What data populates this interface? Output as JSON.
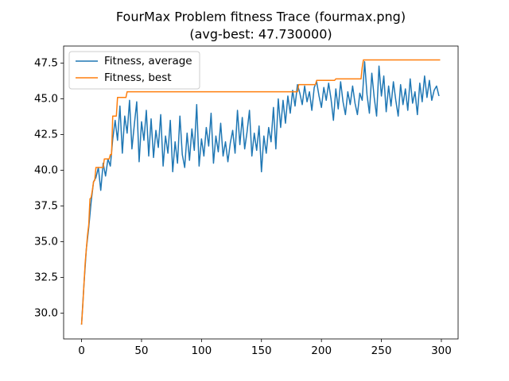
{
  "chart_data": {
    "type": "line",
    "title": "FourMax Problem fitness Trace (fourmax.png)",
    "subtitle": "(avg-best: 47.730000)",
    "legend": "upper left",
    "grid": false,
    "xlim": [
      -14.95,
      313.95
    ],
    "ylim": [
      28.2,
      48.7
    ],
    "xticks": [
      0,
      50,
      100,
      150,
      200,
      250,
      300
    ],
    "yticks": [
      {
        "value": 30,
        "label": "30.0"
      },
      {
        "value": 32.5,
        "label": "32.5"
      },
      {
        "value": 35,
        "label": "35.0"
      },
      {
        "value": 37.5,
        "label": "37.5"
      },
      {
        "value": 40,
        "label": "40.0"
      },
      {
        "value": 42.5,
        "label": "42.5"
      },
      {
        "value": 45,
        "label": "45.0"
      },
      {
        "value": 47.5,
        "label": "47.5"
      }
    ],
    "series": [
      {
        "name": "Fitness, average",
        "color": "#1f77b4",
        "x": [
          0,
          2,
          4,
          6,
          8,
          10,
          12,
          14,
          16,
          18,
          20,
          22,
          24,
          26,
          28,
          30,
          32,
          34,
          36,
          38,
          40,
          42,
          44,
          46,
          48,
          50,
          52,
          54,
          56,
          58,
          60,
          62,
          64,
          66,
          68,
          70,
          72,
          74,
          76,
          78,
          80,
          82,
          84,
          86,
          88,
          90,
          92,
          94,
          96,
          98,
          100,
          102,
          104,
          106,
          108,
          110,
          112,
          114,
          116,
          118,
          120,
          122,
          124,
          126,
          128,
          130,
          132,
          134,
          136,
          138,
          140,
          142,
          144,
          146,
          148,
          150,
          152,
          154,
          156,
          158,
          160,
          162,
          164,
          166,
          168,
          170,
          172,
          174,
          176,
          178,
          180,
          182,
          184,
          186,
          188,
          190,
          192,
          194,
          196,
          198,
          200,
          202,
          204,
          206,
          208,
          210,
          212,
          214,
          216,
          218,
          220,
          222,
          224,
          226,
          228,
          230,
          232,
          234,
          236,
          238,
          240,
          242,
          244,
          246,
          248,
          250,
          252,
          254,
          256,
          258,
          260,
          262,
          264,
          266,
          268,
          270,
          272,
          274,
          276,
          278,
          280,
          282,
          284,
          286,
          288,
          290,
          292,
          294,
          296,
          298
        ],
        "values": [
          29.2,
          32,
          34.5,
          36,
          37.8,
          39.2,
          39.5,
          40.2,
          38.6,
          40.5,
          39.6,
          40.8,
          40.3,
          42.2,
          43.5,
          42.1,
          44.5,
          41.2,
          43.8,
          42.6,
          44.9,
          41.5,
          43.2,
          44.8,
          40.6,
          43.4,
          42.1,
          44.2,
          41.0,
          43.6,
          40.9,
          42.8,
          41.6,
          43.9,
          40.3,
          42.4,
          41.2,
          43.5,
          39.9,
          42.0,
          40.5,
          43.8,
          41.1,
          40.2,
          42.6,
          40.7,
          42.9,
          41.4,
          44.6,
          40.3,
          42.2,
          41.0,
          43.0,
          41.7,
          44.0,
          40.5,
          42.4,
          41.3,
          43.3,
          41.0,
          42.0,
          40.6,
          41.9,
          42.8,
          41.2,
          44.2,
          41.8,
          43.7,
          41.5,
          42.7,
          44.2,
          41.0,
          42.6,
          41.4,
          43.1,
          39.9,
          42.4,
          41.2,
          43.0,
          42.0,
          44.4,
          41.5,
          45.0,
          43.0,
          44.9,
          43.3,
          45.2,
          44.0,
          45.6,
          44.5,
          46.0,
          45.4,
          44.6,
          45.9,
          44.8,
          45.5,
          44.2,
          45.8,
          46.2,
          45.2,
          44.4,
          45.8,
          44.9,
          46.1,
          45.0,
          43.5,
          45.7,
          44.3,
          46.2,
          44.8,
          43.9,
          45.5,
          44.6,
          45.9,
          44.7,
          43.9,
          45.4,
          44.9,
          47.6,
          45.3,
          44.0,
          46.8,
          45.1,
          43.8,
          47.3,
          45.2,
          46.6,
          44.1,
          45.9,
          44.5,
          46.2,
          44.9,
          43.8,
          46.0,
          44.6,
          45.7,
          44.2,
          46.4,
          44.7,
          45.5,
          43.9,
          46.1,
          44.8,
          46.6,
          45.1,
          46.3,
          44.9,
          45.6,
          45.9,
          45.2
        ]
      },
      {
        "name": "Fitness, best",
        "color": "#ff7f0e",
        "x": [
          0,
          1,
          2,
          3,
          4,
          5,
          6,
          7,
          8,
          9,
          10,
          11,
          12,
          18,
          19,
          23,
          24,
          25,
          26,
          29,
          30,
          37,
          38,
          180,
          181,
          195,
          196,
          211,
          212,
          233,
          234,
          235,
          299
        ],
        "values": [
          29.2,
          30.5,
          32,
          33.5,
          34.5,
          35.5,
          36.2,
          38,
          38.1,
          38.6,
          39.2,
          39.3,
          40.2,
          40.2,
          40.8,
          40.8,
          41.1,
          41.1,
          43.8,
          43.8,
          45.1,
          45.1,
          45.5,
          45.5,
          46.0,
          46.0,
          46.3,
          46.3,
          46.4,
          46.4,
          47.2,
          47.73,
          47.73
        ]
      }
    ]
  }
}
